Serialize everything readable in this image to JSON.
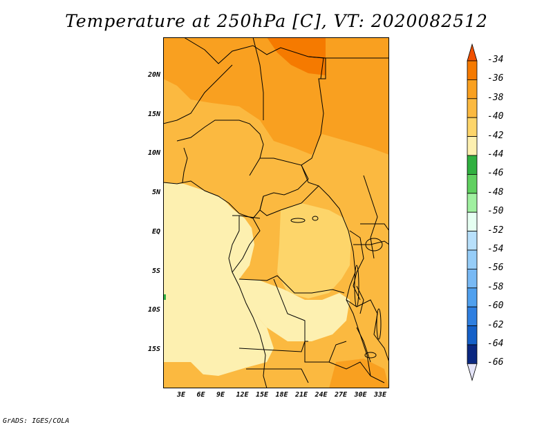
{
  "title": "Temperature at 250hPa [C], VT: 2020082512",
  "footer": "GrADS: IGES/COLA",
  "y_axis_labels": [
    "20N",
    "15N",
    "10N",
    "5N",
    "EQ",
    "5S",
    "10S",
    "15S"
  ],
  "x_axis_labels": [
    "3E",
    "6E",
    "9E",
    "12E",
    "15E",
    "18E",
    "21E",
    "24E",
    "27E",
    "30E",
    "33E"
  ],
  "colorbar": {
    "labels": [
      "-34",
      "-36",
      "-38",
      "-40",
      "-42",
      "-44",
      "-46",
      "-48",
      "-50",
      "-52",
      "-54",
      "-56",
      "-58",
      "-60",
      "-62",
      "-64",
      "-66"
    ],
    "colors": [
      "#f05000",
      "#f57a00",
      "#f9a020",
      "#fbb940",
      "#fdd56a",
      "#fdf0b0",
      "#30b040",
      "#60d060",
      "#a0f0a0",
      "#e6fff2",
      "#b8e0fb",
      "#96cdf8",
      "#78b9f4",
      "#50a0ee",
      "#2f7fe0",
      "#1560c8",
      "#0a2780",
      "#e4e4f8"
    ]
  },
  "map_colors": {
    "c34": "#f05000",
    "c36": "#f57a00",
    "c38": "#f9a020",
    "c40": "#fbb940",
    "c42": "#fdd56a",
    "c44": "#fdf0b0",
    "green": "#30b040",
    "border": "#000000"
  }
}
